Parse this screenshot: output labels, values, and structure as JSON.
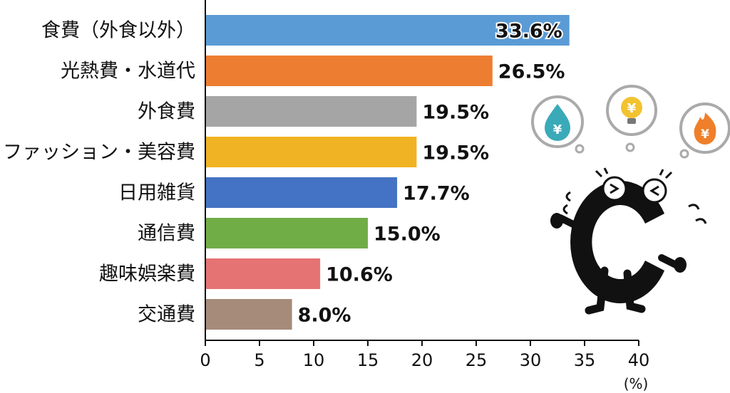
{
  "chart_data": {
    "type": "bar",
    "orientation": "horizontal",
    "categories": [
      "食費（外食以外）",
      "光熱費・水道代",
      "外食費",
      "ファッション・美容費",
      "日用雑貨",
      "通信費",
      "趣味娯楽費",
      "交通費"
    ],
    "values": [
      33.6,
      26.5,
      19.5,
      19.5,
      17.7,
      15.0,
      10.6,
      8.0
    ],
    "value_labels": [
      "33.6%",
      "26.5%",
      "19.5%",
      "19.5%",
      "17.7%",
      "15.0%",
      "10.6%",
      "8.0%"
    ],
    "colors": [
      "#5b9bd5",
      "#ed7d31",
      "#a5a5a5",
      "#f0b323",
      "#4472c4",
      "#70ad47",
      "#e57373",
      "#a68b7a"
    ],
    "xlim": [
      0,
      40
    ],
    "xticks": [
      "0",
      "5",
      "10",
      "15",
      "20",
      "25",
      "30",
      "35",
      "40"
    ],
    "xunit": "(%)",
    "grid": false,
    "legend": "none"
  },
  "illustration": {
    "character": "black-c-mascot-icon",
    "bubbles": [
      "water-drop-yen-icon",
      "light-bulb-yen-icon",
      "flame-yen-icon"
    ],
    "bubble_symbol": "¥"
  }
}
